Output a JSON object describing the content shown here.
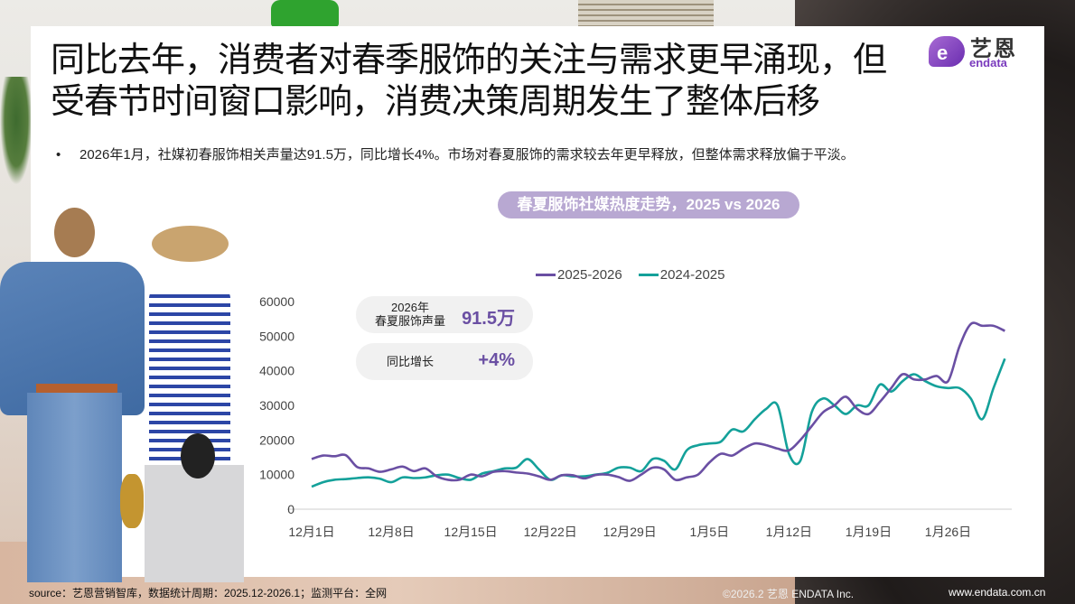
{
  "header": {
    "title_line1": "同比去年，消费者对春季服饰的关注与需求更早涌现，但",
    "title_line2": "受春节时间窗口影响，消费决策周期发生了整体后移",
    "logo_mark": "e",
    "logo_cn": "艺恩",
    "logo_en": "endata"
  },
  "bullet": {
    "marker": "•",
    "text": "2026年1月，社媒初春服饰相关声量达91.5万，同比增长4%。市场对春夏服饰的需求较去年更早释放，但整体需求释放偏于平淡。"
  },
  "stats": [
    {
      "label_line1": "2026年",
      "label_line2": "春夏服饰声量",
      "value": "91.5万"
    },
    {
      "label_line1": "同比增长",
      "label_line2": "",
      "value": "+4%"
    }
  ],
  "colors": {
    "series_2025_2026": "#6a4fa3",
    "series_2024_2025": "#14a19a",
    "title_pill": "#b8a8d2",
    "accent": "#6a4fa3"
  },
  "chart_data": {
    "type": "line",
    "title": "春夏服饰社媒热度走势，2025 vs 2026",
    "xlabel": "",
    "ylabel": "",
    "ylim": [
      0,
      60000
    ],
    "yticks": [
      0,
      10000,
      20000,
      30000,
      40000,
      50000,
      60000
    ],
    "xtick_labels": [
      "12月1日",
      "12月8日",
      "12月15日",
      "12月22日",
      "12月29日",
      "1月5日",
      "1月12日",
      "1月19日",
      "1月26日"
    ],
    "legend": [
      "2025-2026",
      "2024-2025"
    ],
    "legend_position": "top",
    "grid": false,
    "x": [
      "12/1",
      "12/2",
      "12/3",
      "12/4",
      "12/5",
      "12/6",
      "12/7",
      "12/8",
      "12/9",
      "12/10",
      "12/11",
      "12/12",
      "12/13",
      "12/14",
      "12/15",
      "12/16",
      "12/17",
      "12/18",
      "12/19",
      "12/20",
      "12/21",
      "12/22",
      "12/23",
      "12/24",
      "12/25",
      "12/26",
      "12/27",
      "12/28",
      "12/29",
      "12/30",
      "12/31",
      "1/1",
      "1/2",
      "1/3",
      "1/4",
      "1/5",
      "1/6",
      "1/7",
      "1/8",
      "1/9",
      "1/10",
      "1/11",
      "1/12",
      "1/13",
      "1/14",
      "1/15",
      "1/16",
      "1/17",
      "1/18",
      "1/19",
      "1/20",
      "1/21",
      "1/22",
      "1/23",
      "1/24",
      "1/25",
      "1/26",
      "1/27",
      "1/28",
      "1/29",
      "1/30",
      "1/31"
    ],
    "series": [
      {
        "name": "2025-2026",
        "values": [
          14500,
          15500,
          15300,
          15600,
          12200,
          11800,
          10800,
          11500,
          12300,
          11000,
          11800,
          9500,
          8500,
          8500,
          10000,
          9500,
          10800,
          11000,
          10600,
          10300,
          9500,
          8500,
          9800,
          9800,
          8900,
          9900,
          10000,
          9300,
          8200,
          10000,
          12000,
          11500,
          8500,
          9200,
          10000,
          13500,
          16000,
          15500,
          17500,
          19000,
          18500,
          17500,
          17000,
          20000,
          24000,
          28000,
          30000,
          32500,
          29000,
          27500,
          31000,
          35000,
          39000,
          37500,
          37500,
          38500,
          37000,
          47000,
          53500,
          53000,
          53000,
          51500
        ]
      },
      {
        "name": "2024-2025",
        "values": [
          6500,
          7800,
          8500,
          8700,
          9000,
          9200,
          8800,
          7800,
          9200,
          9000,
          9200,
          9800,
          10000,
          9000,
          8500,
          10300,
          11000,
          11800,
          12000,
          14500,
          11500,
          8500,
          9800,
          9500,
          9500,
          10000,
          10500,
          12000,
          12000,
          11000,
          14500,
          14000,
          11500,
          17000,
          18500,
          19000,
          19500,
          23000,
          22500,
          26000,
          29000,
          30000,
          16000,
          14000,
          28000,
          32000,
          30000,
          27500,
          30000,
          30000,
          36000,
          34000,
          37000,
          39000,
          37000,
          35500,
          35000,
          35000,
          32000,
          26000,
          35000,
          43500
        ]
      }
    ]
  },
  "footer": {
    "source": "source：艺恩营销智库，数据统计周期：2025.12-2026.1；监测平台：全网",
    "copyright": "©2026.2  艺恩 ENDATA Inc.",
    "url": "www.endata.com.cn"
  }
}
